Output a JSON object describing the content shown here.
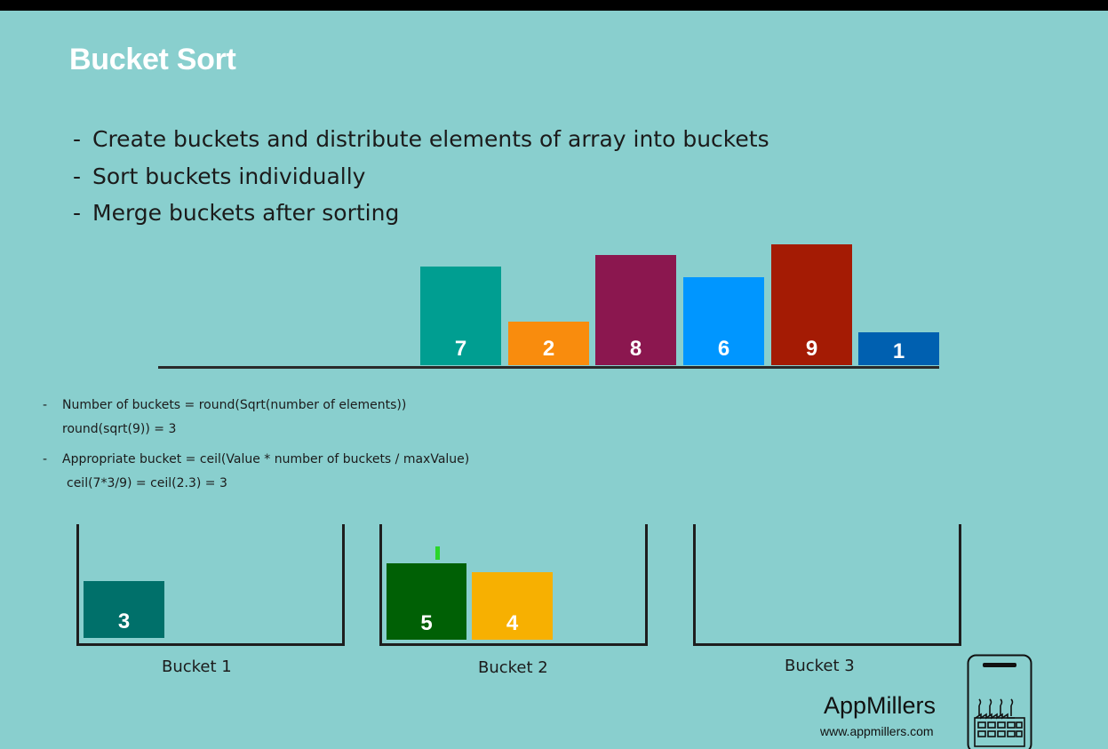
{
  "slide": {
    "title": "Bucket Sort",
    "bullets": [
      "Create buckets and distribute elements of array into buckets",
      "Sort buckets individually",
      "Merge buckets after sorting"
    ],
    "bullet_marker": "-"
  },
  "array": {
    "items": [
      {
        "value": "7",
        "color": "#009e91"
      },
      {
        "value": "2",
        "color": "#f98c0d"
      },
      {
        "value": "8",
        "color": "#8b174f"
      },
      {
        "value": "6",
        "color": "#0096ff"
      },
      {
        "value": "9",
        "color": "#a41b04"
      },
      {
        "value": "1",
        "color": "#0060b0"
      }
    ]
  },
  "formulas": {
    "marker": "-",
    "num_buckets": "Number of buckets = round(Sqrt(number of elements))",
    "num_buckets_example": "round(sqrt(9)) = 3",
    "appropriate_bucket": "Appropriate bucket = ceil(Value * number of buckets / maxValue)",
    "appropriate_bucket_example": "ceil(7*3/9) = ceil(2.3) = 3"
  },
  "buckets": [
    {
      "label": "Bucket 1",
      "items": [
        {
          "value": "3",
          "color": "#00706a"
        }
      ]
    },
    {
      "label": "Bucket 2",
      "items": [
        {
          "value": "5",
          "color": "#006005"
        },
        {
          "value": "4",
          "color": "#f7b001"
        }
      ]
    },
    {
      "label": "Bucket 3",
      "items": []
    }
  ],
  "brand": {
    "name": "AppMillers",
    "url": "www.appmillers.com",
    "logo_icon": "phone-factory-icon"
  }
}
